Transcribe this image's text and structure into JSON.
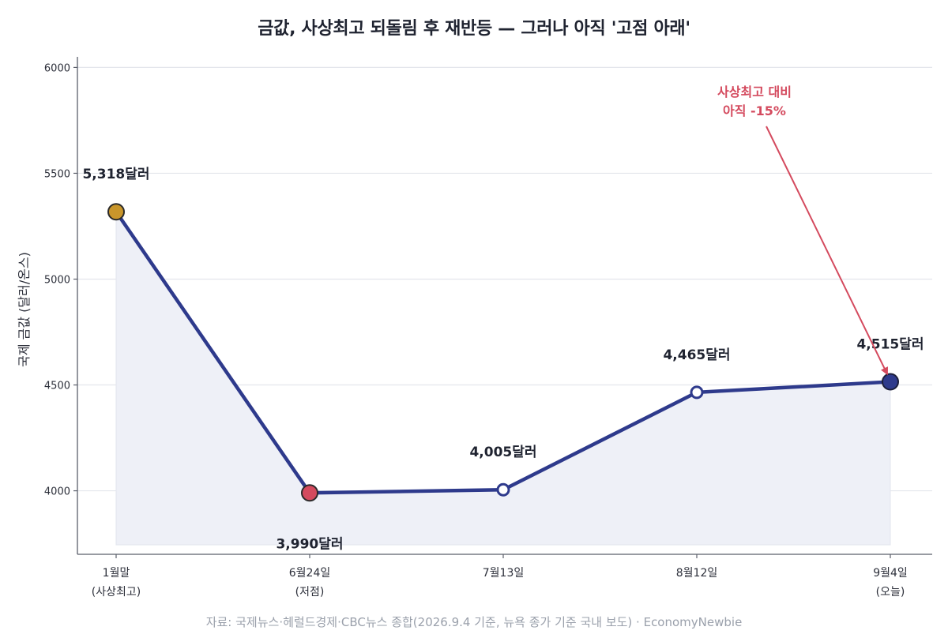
{
  "chart_data": {
    "type": "line",
    "title": "금값, 사상최고 되돌림 후 재반등 — 그러나 아직 '고점 아래'",
    "ylabel": "국제 금값 (달러/온스)",
    "xlabel": "",
    "categories": [
      [
        "1월말",
        "(사상최고)"
      ],
      [
        "6월24일",
        "(저점)"
      ],
      [
        "7월13일"
      ],
      [
        "8월12일"
      ],
      [
        "9월4일",
        "(오늘)"
      ]
    ],
    "series": [
      {
        "values": [
          5318,
          3990,
          4005,
          4465,
          4515
        ]
      }
    ],
    "data_labels": [
      "5,318달러",
      "3,990달러",
      "4,005달러",
      "4,465달러",
      "4,515달러"
    ],
    "point_styles": [
      "high",
      "low",
      "plain",
      "plain",
      "current"
    ],
    "ylim": [
      3700,
      6050
    ],
    "yticks": [
      4000,
      4500,
      5000,
      5500,
      6000
    ],
    "grid": "horizontal",
    "fill_under_line": true,
    "annotation": {
      "lines": [
        "사상최고 대비",
        "아직 -15%"
      ],
      "target_index": 4
    },
    "source": "자료: 국제뉴스·헤럴드경제·CBC뉴스 종합(2026.9.4 기준, 뉴욕 종가 기준 국내 보도) · EconomyNewbie",
    "colors": {
      "line": "#2e3a8c",
      "fill": "#eef0f7",
      "high": "#c9962b",
      "low": "#d44a5e",
      "current": "#2e3a8c",
      "annotation": "#d44a5e",
      "grid": "#e4e6ec",
      "axis": "#5b5f6b"
    }
  }
}
